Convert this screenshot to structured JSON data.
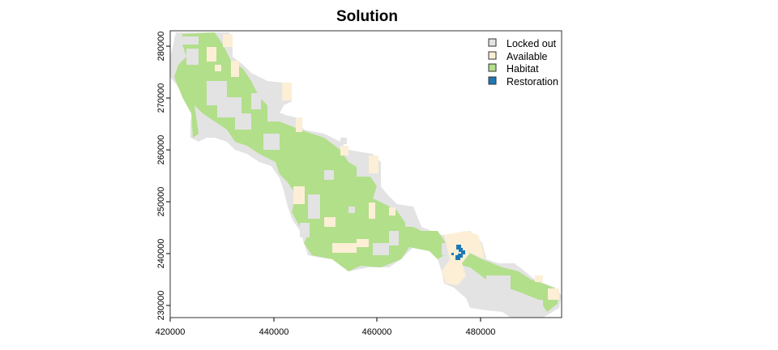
{
  "title": "Solution",
  "colors": {
    "locked_out": "#e3e3e3",
    "available": "#fcefd6",
    "habitat": "#b2df8a",
    "restoration": "#1f78b4"
  },
  "legend": [
    {
      "label": "Locked out",
      "color": "#e3e3e3"
    },
    {
      "label": "Available",
      "color": "#fcefd6"
    },
    {
      "label": "Habitat",
      "color": "#b2df8a"
    },
    {
      "label": "Restoration",
      "color": "#1f78b4"
    }
  ],
  "chart_data": {
    "type": "heatmap",
    "title": "Solution",
    "x_ticks": [
      "420000",
      "440000",
      "460000",
      "480000"
    ],
    "y_ticks": [
      "230000",
      "240000",
      "250000",
      "260000",
      "270000",
      "280000"
    ],
    "xlim": [
      419700,
      495500
    ],
    "ylim": [
      227500,
      283000
    ],
    "categories": [
      "Locked out",
      "Available",
      "Habitat",
      "Restoration"
    ],
    "legend_position": "top-right"
  }
}
